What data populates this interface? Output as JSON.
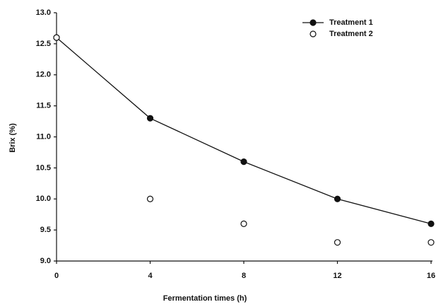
{
  "chart_data": {
    "type": "line",
    "x_label": "Fermentation times (h)",
    "y_label": "Brix (%)",
    "x": [
      0,
      4,
      8,
      12,
      16
    ],
    "series": [
      {
        "name": "Treatment 1",
        "color": "#111111",
        "filled": true,
        "line": true,
        "values": [
          12.6,
          11.3,
          10.6,
          10.0,
          9.6
        ]
      },
      {
        "name": "Treatment 2",
        "color": "#111111",
        "filled": false,
        "line": false,
        "values": [
          12.6,
          10.0,
          9.6,
          9.3,
          9.3
        ]
      }
    ],
    "xlim": [
      0,
      16
    ],
    "xticks": [
      0,
      4,
      8,
      12,
      16
    ],
    "ylim": [
      9,
      13
    ],
    "yticks": [
      {
        "value": 9,
        "label": "9.0"
      },
      9.5,
      {
        "value": 10,
        "label": "10.0"
      },
      10.5,
      {
        "value": 11,
        "label": "11.0"
      },
      11.5,
      {
        "value": 12,
        "label": "12.0"
      },
      12.5,
      {
        "value": 13,
        "label": "13.0"
      }
    ],
    "grid": false,
    "legend": "upper right"
  }
}
